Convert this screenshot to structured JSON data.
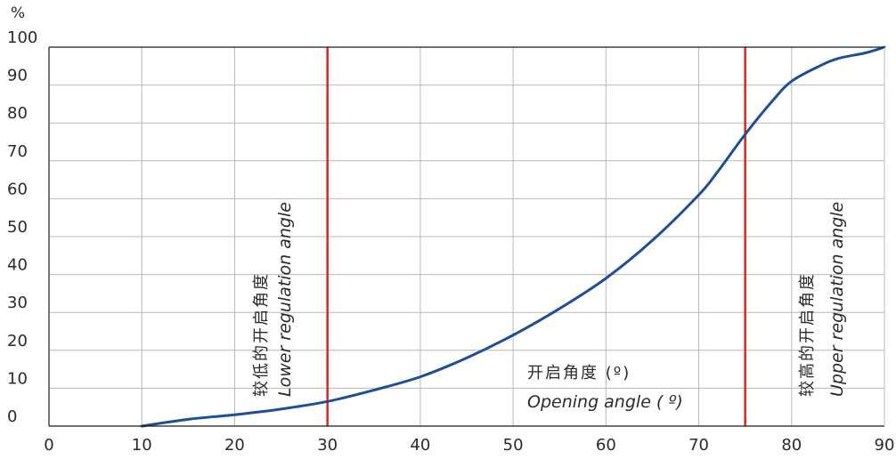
{
  "colors": {
    "curve": "#1f4e99",
    "marker_line": "#e2231a",
    "grid": "#b8b8b8",
    "axis": "#1a1a1a",
    "text": "#2a2a2a"
  },
  "chart_data": {
    "type": "line",
    "y_unit_label": "%",
    "x_ticks": [
      "0",
      "10",
      "20",
      "30",
      "40",
      "50",
      "60",
      "70",
      "80",
      "90"
    ],
    "y_ticks": [
      "0",
      "10",
      "20",
      "30",
      "40",
      "50",
      "60",
      "70",
      "80",
      "90",
      "100"
    ],
    "xlim": [
      0,
      90
    ],
    "ylim": [
      0,
      100
    ],
    "grid": true,
    "x": [
      10,
      15,
      20,
      25,
      30,
      35,
      40,
      45,
      50,
      55,
      60,
      65,
      70,
      72,
      75,
      78,
      80,
      83,
      85,
      88,
      90
    ],
    "values": [
      0,
      1.8,
      3.0,
      4.5,
      6.5,
      9.5,
      13.0,
      18.0,
      24.0,
      31.0,
      39.0,
      49.0,
      61.0,
      67.0,
      77.0,
      86.0,
      91.0,
      95.0,
      97.0,
      98.5,
      100.0
    ],
    "vertical_markers": [
      {
        "x": 30,
        "label_cn": "较低的开启角度",
        "label_en": "Lower regulation angle"
      },
      {
        "x": 75,
        "label_cn": "较高的开启角度",
        "label_en": "Upper regulation angle"
      }
    ],
    "x_annotation": {
      "cn": "开启角度 (º)",
      "en": "Opening angle ( º)"
    }
  }
}
